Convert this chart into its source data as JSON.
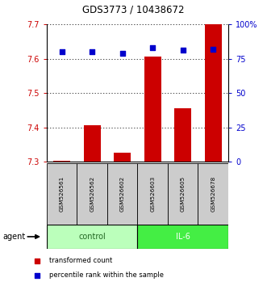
{
  "title": "GDS3773 / 10438672",
  "samples": [
    "GSM526561",
    "GSM526562",
    "GSM526602",
    "GSM526603",
    "GSM526605",
    "GSM526678"
  ],
  "red_values": [
    7.302,
    7.405,
    7.325,
    7.605,
    7.455,
    7.7
  ],
  "blue_values": [
    80,
    80,
    79,
    83,
    81,
    82
  ],
  "ylim_left": [
    7.3,
    7.7
  ],
  "ylim_right": [
    0,
    100
  ],
  "yticks_left": [
    7.3,
    7.4,
    7.5,
    7.6,
    7.7
  ],
  "yticks_right": [
    0,
    25,
    50,
    75,
    100
  ],
  "ytick_labels_right": [
    "0",
    "25",
    "50",
    "75",
    "100%"
  ],
  "red_color": "#cc0000",
  "blue_color": "#0000cc",
  "control_color": "#bbffbb",
  "il6_color": "#44ee44",
  "control_text_color": "#226622",
  "il6_text_color": "#005500",
  "bar_width": 0.55,
  "legend_red_label": "transformed count",
  "legend_blue_label": "percentile rank within the sample",
  "agent_label": "agent",
  "sample_bg_color": "#cccccc",
  "title_fontsize": 8.5
}
